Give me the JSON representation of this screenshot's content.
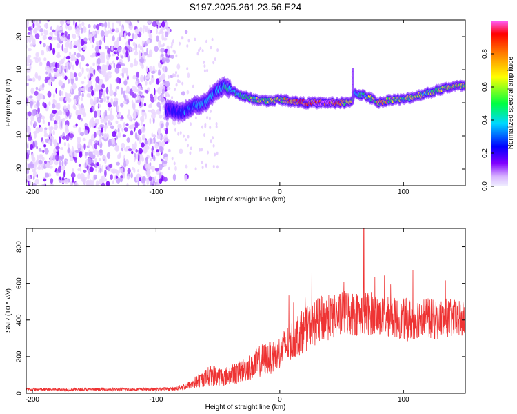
{
  "title": "S197.2025.261.23.56.E24",
  "chart_data": [
    {
      "type": "heatmap",
      "name": "spectrogram",
      "xlabel": "Height of straight line (km)",
      "ylabel": "Frequency (Hz)",
      "xlim": [
        -205,
        150
      ],
      "ylim": [
        -25,
        25
      ],
      "xticks": [
        -200,
        -100,
        0,
        100
      ],
      "yticks": [
        -20,
        -10,
        0,
        10,
        20
      ],
      "colormap": [
        "#f0f0ff",
        "#d8b4ff",
        "#8000ff",
        "#0000ff",
        "#00d8ff",
        "#00ff40",
        "#ffff00",
        "#ff8000",
        "#ff0000",
        "#ff60ff"
      ],
      "colorbar": {
        "label": "Normalized spectral amplitude",
        "range": [
          0,
          1
        ],
        "ticks": [
          0.0,
          0.2,
          0.4,
          0.6,
          0.8
        ]
      },
      "ridge": {
        "x": [
          -90,
          -80,
          -70,
          -60,
          -50,
          -45,
          -40,
          -30,
          -20,
          -10,
          0,
          20,
          40,
          58,
          60,
          70,
          80,
          90,
          100,
          110,
          120,
          130,
          140,
          150
        ],
        "freq": [
          -2,
          -3,
          -1,
          0,
          4,
          5,
          4,
          2,
          1,
          0.5,
          1,
          0,
          0,
          0,
          3,
          2,
          0,
          1,
          1,
          2,
          3,
          4,
          5,
          5
        ],
        "amplitude": [
          0.15,
          0.2,
          0.25,
          0.3,
          0.3,
          0.35,
          0.35,
          0.4,
          0.5,
          0.55,
          0.6,
          0.9,
          0.95,
          0.5,
          0.3,
          0.45,
          0.7,
          0.55,
          0.45,
          0.5,
          0.5,
          0.55,
          0.6,
          0.6
        ]
      }
    },
    {
      "type": "line",
      "name": "snr",
      "xlabel": "Height of straight line (km)",
      "ylabel": "SNR (10 * v/v)",
      "xlim": [
        -205,
        150
      ],
      "ylim": [
        0,
        900
      ],
      "xticks": [
        -200,
        -100,
        0,
        100
      ],
      "yticks": [
        0,
        200,
        400,
        600,
        800
      ],
      "color": "#ee3333",
      "envelope": {
        "x": [
          -205,
          -100,
          -85,
          -75,
          -65,
          -55,
          -45,
          -35,
          -25,
          -15,
          -5,
          5,
          15,
          25,
          35,
          45,
          55,
          65,
          75,
          85,
          95,
          105,
          115,
          125,
          135,
          150
        ],
        "mean": [
          20,
          22,
          25,
          40,
          70,
          100,
          90,
          110,
          140,
          180,
          200,
          260,
          320,
          370,
          410,
          420,
          440,
          430,
          440,
          420,
          410,
          400,
          420,
          400,
          410,
          400
        ],
        "spread": [
          8,
          8,
          10,
          20,
          40,
          60,
          50,
          60,
          70,
          90,
          90,
          100,
          120,
          120,
          130,
          120,
          130,
          120,
          120,
          110,
          110,
          120,
          110,
          110,
          110,
          100
        ]
      },
      "peak": {
        "x": 68,
        "y": 900
      }
    }
  ]
}
